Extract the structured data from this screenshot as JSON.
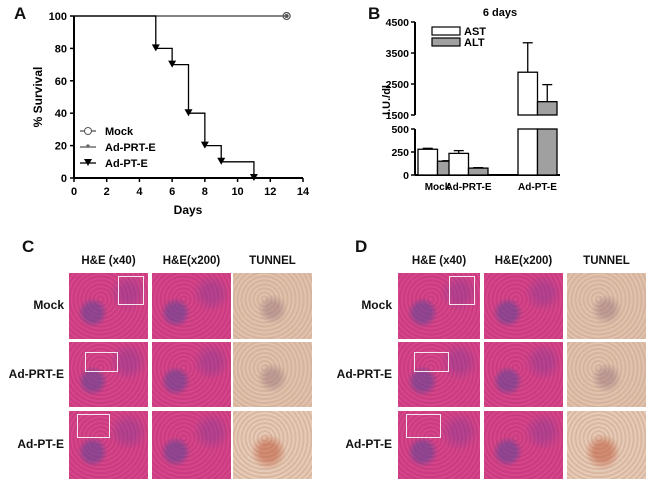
{
  "panels": {
    "a": "A",
    "b": "B",
    "c": "C",
    "d": "D"
  },
  "chart_data": [
    {
      "type": "line",
      "subtype": "kaplan-meier survival",
      "xlabel": "Days",
      "ylabel": "% Survival",
      "xlim": [
        0,
        14
      ],
      "ylim": [
        0,
        100
      ],
      "xticks": [
        0,
        2,
        4,
        6,
        8,
        10,
        12,
        14
      ],
      "yticks": [
        0,
        20,
        40,
        60,
        80,
        100
      ],
      "legend_position": "bottom-left",
      "series": [
        {
          "name": "Mock",
          "marker": "open-circle",
          "color": "#555555",
          "x": [
            0,
            13
          ],
          "y": [
            100,
            100
          ]
        },
        {
          "name": "Ad-PRT-E",
          "marker": "star",
          "color": "#555555",
          "x": [
            0,
            13
          ],
          "y": [
            100,
            100
          ]
        },
        {
          "name": "Ad-PT-E",
          "marker": "down-triangle",
          "color": "#000000",
          "x": [
            0,
            5,
            6,
            7,
            8,
            9,
            11
          ],
          "y": [
            100,
            80,
            70,
            40,
            20,
            10,
            0
          ]
        }
      ]
    },
    {
      "type": "bar",
      "title": "6 days",
      "ylabel": "I.U./dl",
      "axis_break": true,
      "ylim_lower": [
        0,
        500
      ],
      "ylim_upper": [
        1500,
        4500
      ],
      "yticks_lower": [
        0,
        250,
        500
      ],
      "yticks_upper": [
        1500,
        2500,
        3500,
        4500
      ],
      "categories": [
        "Mock",
        "Ad-PRT-E",
        "Ad-PT-E"
      ],
      "legend_position": "top-left",
      "series": [
        {
          "name": "AST",
          "color": "#ffffff",
          "values": [
            280,
            235,
            2880
          ],
          "errors": [
            10,
            30,
            950
          ]
        },
        {
          "name": "ALT",
          "color": "#a0a0a0",
          "values": [
            150,
            75,
            1930
          ],
          "errors": [
            5,
            5,
            550
          ]
        }
      ]
    }
  ],
  "histology": {
    "columns": [
      "H&E (x40)",
      "H&E(x200)",
      "TUNNEL"
    ],
    "rows": [
      "Mock",
      "Ad-PRT-E",
      "Ad-PT-E"
    ]
  }
}
